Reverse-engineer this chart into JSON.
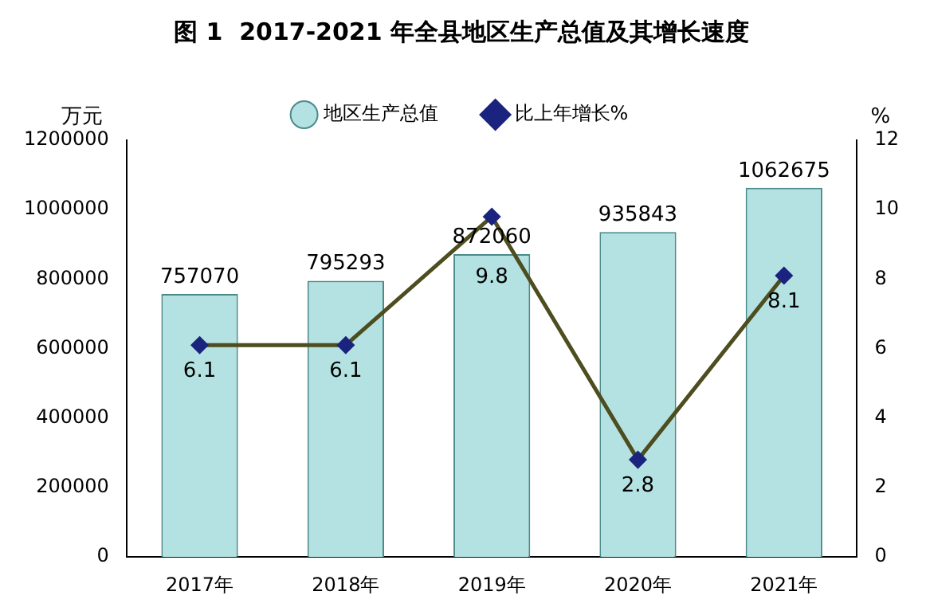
{
  "chart_data": {
    "type": "bar",
    "title": "图 1  2017-2021 年全县地区生产总值及其增长速度",
    "categories": [
      "2017年",
      "2018年",
      "2019年",
      "2020年",
      "2021年"
    ],
    "series": [
      {
        "name": "地区生产总值",
        "color": "#b4e2e2",
        "values": [
          757070,
          795293,
          872060,
          935843,
          1062675
        ]
      },
      {
        "name": "比上年增长%",
        "type": "line",
        "axis": "y2",
        "color": "#4d4d1f",
        "values": [
          6.1,
          6.1,
          9.8,
          2.8,
          8.1
        ]
      }
    ],
    "ylabel": "万元",
    "y2label": "%",
    "ylim": [
      0,
      1200000
    ],
    "yticks": [
      0,
      200000,
      400000,
      600000,
      800000,
      1000000,
      1200000
    ],
    "y2lim": [
      0,
      12
    ],
    "y2ticks": [
      0,
      2,
      4,
      6,
      8,
      10,
      12
    ],
    "grid": false,
    "legend": "top",
    "marker": "diamond",
    "line_style": "solid",
    "data_labels": true
  }
}
